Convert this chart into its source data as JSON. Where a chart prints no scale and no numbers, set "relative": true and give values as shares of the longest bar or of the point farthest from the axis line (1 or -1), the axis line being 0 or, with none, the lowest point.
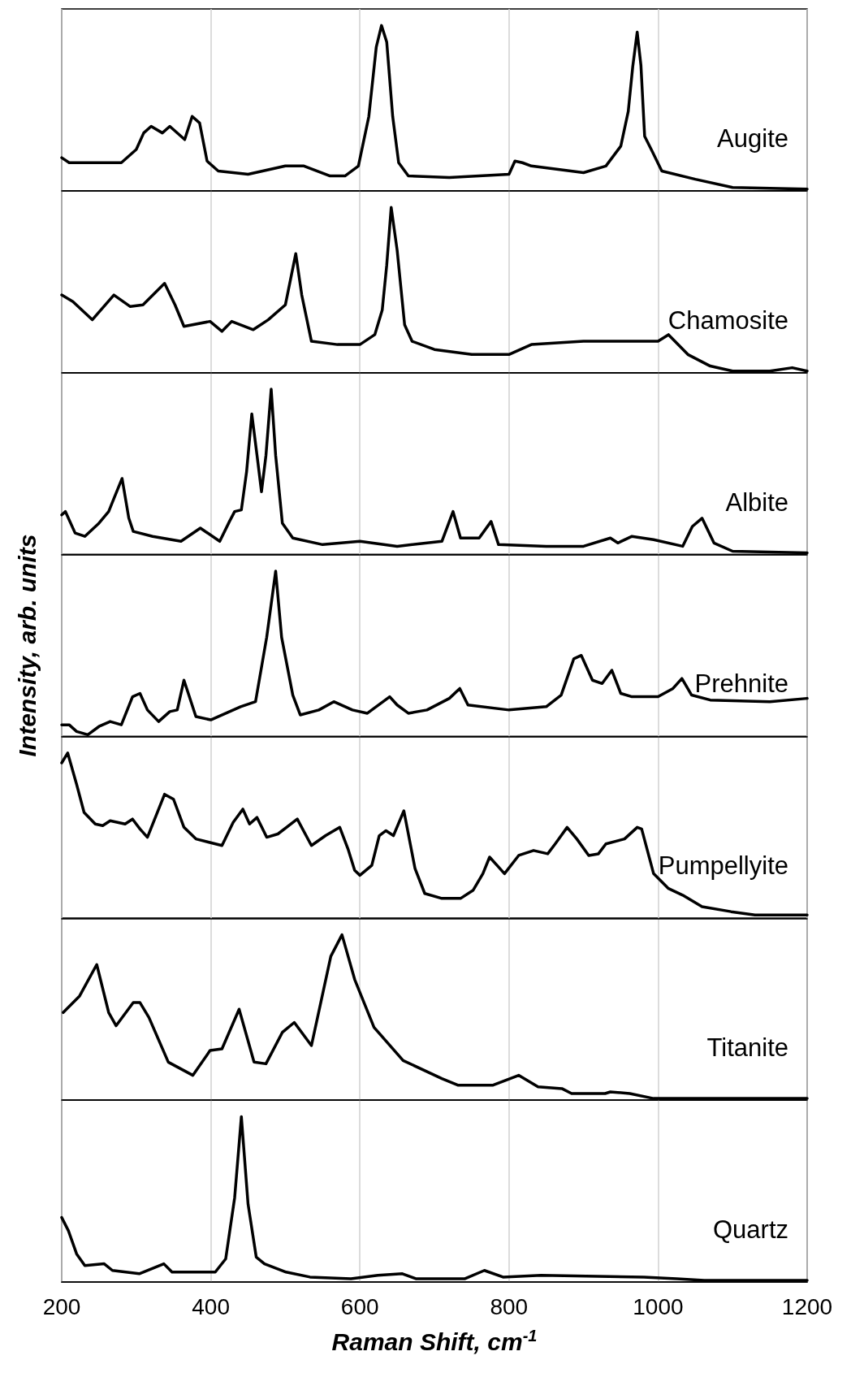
{
  "chart_data": [
    {
      "type": "line",
      "relative": true,
      "xlim": [
        200,
        1200
      ],
      "xticks": [
        200,
        400,
        600,
        800,
        1000,
        1200
      ],
      "grid": "x",
      "tick_labels": false,
      "x": [
        200,
        210,
        280,
        300,
        310,
        320,
        335,
        345,
        365,
        375,
        385,
        395,
        410,
        450,
        500,
        525,
        560,
        580,
        598,
        612,
        622,
        629,
        636,
        644,
        652,
        665,
        720,
        800,
        808,
        818,
        830,
        900,
        930,
        950,
        960,
        966,
        972,
        977,
        982,
        992,
        1005,
        1050,
        1100,
        1200
      ],
      "series": [
        {
          "name": "Augite",
          "color": "#000000",
          "values": [
            0.2,
            0.17,
            0.17,
            0.25,
            0.35,
            0.39,
            0.35,
            0.39,
            0.31,
            0.45,
            0.41,
            0.18,
            0.12,
            0.1,
            0.15,
            0.15,
            0.09,
            0.09,
            0.15,
            0.45,
            0.87,
            1,
            0.9,
            0.45,
            0.17,
            0.09,
            0.08,
            0.1,
            0.18,
            0.17,
            0.15,
            0.11,
            0.15,
            0.27,
            0.48,
            0.75,
            0.96,
            0.76,
            0.33,
            0.24,
            0.12,
            0.07,
            0.02,
            0.01
          ]
        }
      ]
    },
    {
      "type": "line",
      "relative": true,
      "xlim": [
        200,
        1200
      ],
      "xticks": [
        200,
        400,
        600,
        800,
        1000,
        1200
      ],
      "grid": "x",
      "tick_labels": false,
      "x": [
        200,
        215,
        241,
        270,
        292,
        309,
        338,
        352,
        364,
        399,
        415,
        428,
        457,
        477,
        500,
        514,
        522,
        535,
        570,
        600,
        620,
        630,
        636,
        642,
        650,
        660,
        670,
        700,
        750,
        800,
        830,
        900,
        950,
        1000,
        1014,
        1040,
        1070,
        1100,
        1150,
        1180,
        1200
      ],
      "series": [
        {
          "name": "Chamosite",
          "color": "#000000",
          "values": [
            0.47,
            0.43,
            0.32,
            0.47,
            0.4,
            0.41,
            0.54,
            0.41,
            0.28,
            0.31,
            0.25,
            0.31,
            0.26,
            0.32,
            0.41,
            0.72,
            0.47,
            0.19,
            0.17,
            0.17,
            0.23,
            0.38,
            0.65,
            1,
            0.74,
            0.29,
            0.19,
            0.14,
            0.11,
            0.11,
            0.17,
            0.19,
            0.19,
            0.19,
            0.23,
            0.11,
            0.04,
            0.01,
            0.01,
            0.03,
            0.01
          ]
        }
      ]
    },
    {
      "type": "line",
      "relative": true,
      "xlim": [
        200,
        1200
      ],
      "xticks": [
        200,
        400,
        600,
        800,
        1000,
        1200
      ],
      "grid": "x",
      "tick_labels": false,
      "x": [
        200,
        205,
        218,
        231,
        250,
        263,
        271,
        281,
        290,
        296,
        322,
        360,
        386,
        412,
        425,
        432,
        441,
        448,
        455,
        462,
        468,
        474,
        481,
        487,
        496,
        510,
        550,
        600,
        650,
        710,
        725,
        735,
        760,
        776,
        786,
        850,
        900,
        936,
        946,
        965,
        994,
        1033,
        1046,
        1059,
        1075,
        1100,
        1200
      ],
      "series": [
        {
          "name": "Albite",
          "color": "#000000",
          "values": [
            0.24,
            0.26,
            0.13,
            0.11,
            0.19,
            0.26,
            0.35,
            0.46,
            0.22,
            0.14,
            0.11,
            0.08,
            0.16,
            0.08,
            0.2,
            0.26,
            0.27,
            0.5,
            0.85,
            0.6,
            0.38,
            0.6,
            1,
            0.6,
            0.19,
            0.1,
            0.06,
            0.08,
            0.05,
            0.08,
            0.26,
            0.1,
            0.1,
            0.2,
            0.06,
            0.05,
            0.05,
            0.1,
            0.07,
            0.11,
            0.09,
            0.05,
            0.17,
            0.22,
            0.07,
            0.02,
            0.01
          ]
        }
      ]
    },
    {
      "type": "line",
      "relative": true,
      "xlim": [
        200,
        1200
      ],
      "xticks": [
        200,
        400,
        600,
        800,
        1000,
        1200
      ],
      "grid": "x",
      "tick_labels": false,
      "ylabel": "Intensity, arb. units",
      "x": [
        200,
        210,
        220,
        235,
        250,
        265,
        280,
        295,
        305,
        315,
        330,
        345,
        355,
        364,
        380,
        400,
        440,
        460,
        475,
        487,
        495,
        510,
        520,
        545,
        565,
        590,
        610,
        640,
        650,
        665,
        690,
        720,
        734,
        745,
        800,
        850,
        870,
        887,
        897,
        912,
        925,
        938,
        950,
        965,
        1000,
        1020,
        1032,
        1045,
        1070,
        1150,
        1200
      ],
      "series": [
        {
          "name": "Prehnite",
          "color": "#000000",
          "values": [
            0.07,
            0.07,
            0.03,
            0.01,
            0.06,
            0.09,
            0.07,
            0.24,
            0.26,
            0.16,
            0.09,
            0.15,
            0.16,
            0.34,
            0.12,
            0.1,
            0.18,
            0.21,
            0.6,
            1,
            0.6,
            0.25,
            0.13,
            0.16,
            0.21,
            0.16,
            0.14,
            0.24,
            0.19,
            0.14,
            0.16,
            0.23,
            0.29,
            0.19,
            0.16,
            0.18,
            0.25,
            0.47,
            0.49,
            0.34,
            0.32,
            0.4,
            0.26,
            0.24,
            0.24,
            0.29,
            0.35,
            0.25,
            0.22,
            0.21,
            0.23
          ]
        }
      ]
    },
    {
      "type": "line",
      "relative": true,
      "xlim": [
        200,
        1200
      ],
      "xticks": [
        200,
        400,
        600,
        800,
        1000,
        1200
      ],
      "grid": "x",
      "tick_labels": false,
      "x": [
        200,
        208,
        220,
        230,
        245,
        255,
        265,
        285,
        295,
        305,
        315,
        338,
        350,
        364,
        380,
        415,
        430,
        443,
        452,
        462,
        475,
        490,
        516,
        535,
        554,
        573,
        584,
        593,
        600,
        616,
        626,
        635,
        645,
        659,
        674,
        687,
        710,
        735,
        752,
        765,
        774,
        784,
        794,
        813,
        833,
        852,
        862,
        878,
        891,
        907,
        920,
        930,
        955,
        972,
        978,
        994,
        1014,
        1033,
        1059,
        1098,
        1130,
        1200
      ],
      "series": [
        {
          "name": "Pumpellyite",
          "color": "#000000",
          "values": [
            0.94,
            1,
            0.81,
            0.64,
            0.57,
            0.56,
            0.59,
            0.57,
            0.6,
            0.54,
            0.49,
            0.75,
            0.72,
            0.55,
            0.48,
            0.44,
            0.58,
            0.66,
            0.57,
            0.61,
            0.49,
            0.51,
            0.6,
            0.44,
            0.5,
            0.55,
            0.42,
            0.29,
            0.26,
            0.32,
            0.5,
            0.53,
            0.5,
            0.65,
            0.3,
            0.15,
            0.12,
            0.12,
            0.17,
            0.27,
            0.37,
            0.32,
            0.27,
            0.38,
            0.41,
            0.39,
            0.45,
            0.55,
            0.48,
            0.38,
            0.39,
            0.45,
            0.48,
            0.55,
            0.54,
            0.27,
            0.18,
            0.14,
            0.07,
            0.04,
            0.02,
            0.02
          ]
        }
      ]
    },
    {
      "type": "line",
      "relative": true,
      "xlim": [
        200,
        1200
      ],
      "xticks": [
        200,
        400,
        600,
        800,
        1000,
        1200
      ],
      "grid": "x",
      "tick_labels": false,
      "x": [
        202,
        224,
        247,
        263,
        273,
        296,
        305,
        317,
        343,
        376,
        399,
        415,
        438,
        458,
        474,
        496,
        512,
        535,
        561,
        576,
        593,
        619,
        658,
        710,
        732,
        778,
        813,
        839,
        871,
        884,
        929,
        936,
        962,
        994,
        1200
      ],
      "series": [
        {
          "name": "Titanite",
          "color": "#000000",
          "values": [
            0.53,
            0.63,
            0.82,
            0.53,
            0.45,
            0.59,
            0.59,
            0.5,
            0.23,
            0.15,
            0.3,
            0.31,
            0.55,
            0.23,
            0.22,
            0.41,
            0.47,
            0.33,
            0.87,
            1,
            0.73,
            0.44,
            0.24,
            0.13,
            0.09,
            0.09,
            0.15,
            0.08,
            0.07,
            0.04,
            0.04,
            0.05,
            0.04,
            0.01,
            0.01
          ]
        }
      ]
    },
    {
      "type": "line",
      "relative": true,
      "xlim": [
        200,
        1200
      ],
      "xticks": [
        200,
        400,
        600,
        800,
        1000,
        1200
      ],
      "grid": "x",
      "tick_labels": "x",
      "xlabel": "Raman Shift, cm$^{-1}$",
      "x": [
        200,
        209,
        220,
        231,
        257,
        268,
        304,
        337,
        348,
        406,
        420,
        432,
        441,
        450,
        461,
        472,
        501,
        533,
        588,
        624,
        657,
        675,
        741,
        767,
        792,
        843,
        981,
        1025,
        1062,
        1200
      ],
      "series": [
        {
          "name": "Quartz",
          "color": "#000000",
          "values": [
            0.39,
            0.31,
            0.17,
            0.1,
            0.11,
            0.07,
            0.05,
            0.11,
            0.06,
            0.06,
            0.14,
            0.51,
            1,
            0.47,
            0.15,
            0.11,
            0.06,
            0.03,
            0.02,
            0.04,
            0.05,
            0.02,
            0.02,
            0.07,
            0.03,
            0.04,
            0.03,
            0.02,
            0.01,
            0.01
          ]
        }
      ]
    }
  ]
}
